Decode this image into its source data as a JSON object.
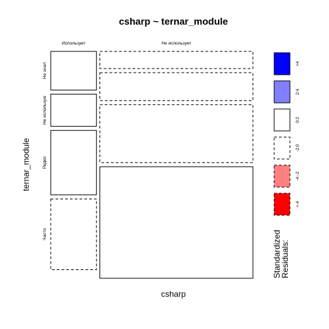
{
  "chart_data": {
    "type": "mosaic",
    "title": "csharp ~ ternar_module",
    "xlabel": "csharp",
    "ylabel": "ternar_module",
    "x_categories": [
      "Использует",
      "Не использует"
    ],
    "y_categories": [
      "Не знал",
      "Не использую",
      "Редко",
      "Часто"
    ],
    "column_proportions": [
      0.23,
      0.77
    ],
    "cells": [
      {
        "x": "Использует",
        "y": "Не знал",
        "proportion": 0.18,
        "residual_class": "0:2"
      },
      {
        "x": "Использует",
        "y": "Не использую",
        "proportion": 0.15,
        "residual_class": "0:2"
      },
      {
        "x": "Использует",
        "y": "Редко",
        "proportion": 0.3,
        "residual_class": "0:2"
      },
      {
        "x": "Использует",
        "y": "Часто",
        "proportion": 0.33,
        "residual_class": "-2:0"
      },
      {
        "x": "Не использует",
        "y": "Не знал",
        "proportion": 0.08,
        "residual_class": "-2:0"
      },
      {
        "x": "Не использует",
        "y": "Не использую",
        "proportion": 0.13,
        "residual_class": "-2:0"
      },
      {
        "x": "Не использует",
        "y": "Редко",
        "proportion": 0.27,
        "residual_class": "-2:0"
      },
      {
        "x": "Не использует",
        "y": "Часто",
        "proportion": 0.52,
        "residual_class": "0:2"
      }
    ],
    "legend": {
      "title_lines": [
        "Standardized",
        "Residuals:"
      ],
      "entries": [
        {
          "label": ">4",
          "fill": "#0000ff",
          "dashed": false
        },
        {
          "label": "2:4",
          "fill": "#8080ff",
          "dashed": false
        },
        {
          "label": "0:2",
          "fill": "#ffffff",
          "dashed": false
        },
        {
          "label": "-2:0",
          "fill": "#ffffff",
          "dashed": true
        },
        {
          "label": "-4:-2",
          "fill": "#ff8080",
          "dashed": true
        },
        {
          "label": "<-4",
          "fill": "#ff0000",
          "dashed": true
        }
      ]
    }
  }
}
